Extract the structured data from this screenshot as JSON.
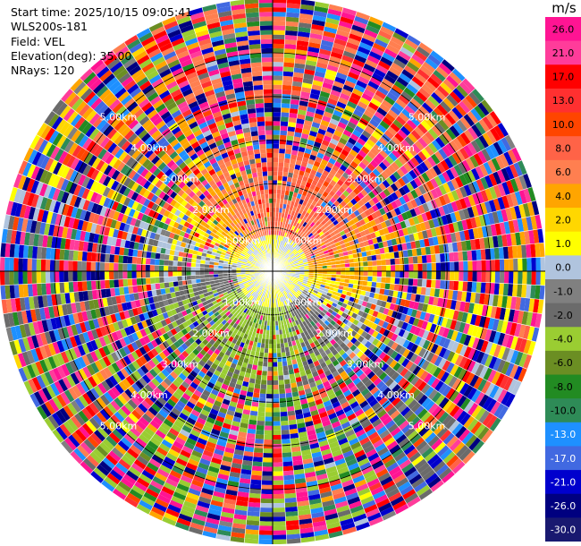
{
  "info": {
    "start_time": "Start time: 2025/10/15 09:05:41",
    "instrument": "WLS200s-181",
    "field": "Field: VEL",
    "elevation": "Elevation(deg): 35.00",
    "nrays": "NRays: 120"
  },
  "colorbar": {
    "unit": "m/s",
    "ticks": [
      "26.0",
      "21.0",
      "17.0",
      "13.0",
      "10.0",
      "8.0",
      "6.0",
      "4.0",
      "2.0",
      "1.0",
      "0.0",
      "-1.0",
      "-2.0",
      "-4.0",
      "-6.0",
      "-8.0",
      "-10.0",
      "-13.0",
      "-17.0",
      "-21.0",
      "-26.0",
      "-30.0"
    ],
    "colors": [
      "#ff1493",
      "#ff3c9a",
      "#ff0000",
      "#ff3030",
      "#ff4500",
      "#ff6347",
      "#ff7f50",
      "#ffa500",
      "#ffd700",
      "#ffff00",
      "#b0c4de",
      "#808080",
      "#6b6b6b",
      "#9acd32",
      "#6b8e23",
      "#228b22",
      "#2e8b57",
      "#1e90ff",
      "#4169e1",
      "#0000cd",
      "#000080",
      "#191970"
    ]
  },
  "chart_data": {
    "type": "heatmap",
    "projection": "polar-ppi",
    "field": "VEL",
    "nrays": 120,
    "range_rings_km": [
      1,
      2,
      3,
      4,
      5
    ],
    "ring_labels": [
      "1.00km",
      "2.00km",
      "3.00km",
      "4.00km",
      "5.00km"
    ],
    "max_range_km": 5.0,
    "value_range": [
      -30,
      26
    ]
  }
}
